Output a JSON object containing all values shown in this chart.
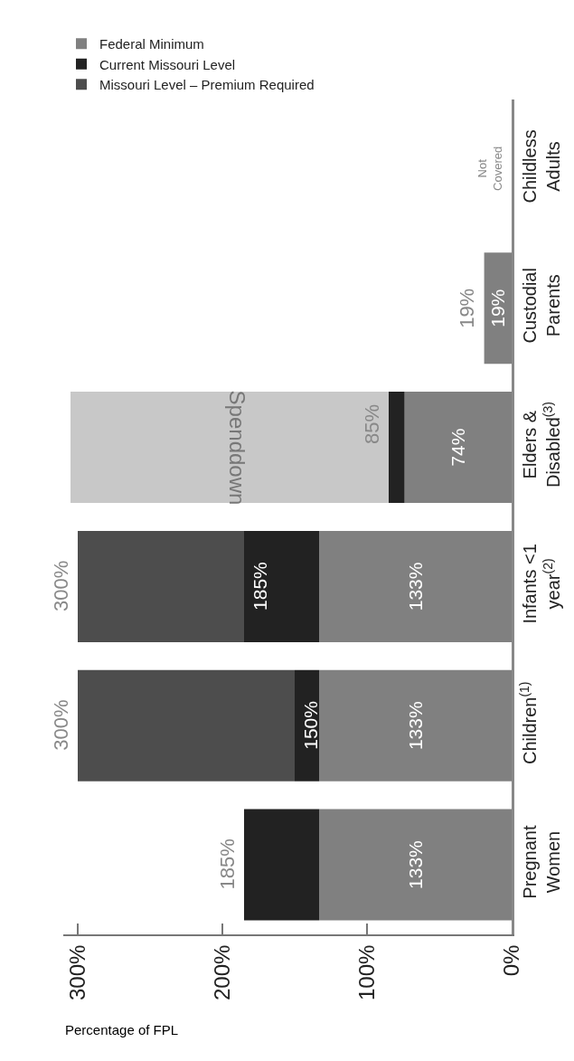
{
  "chart_data": {
    "type": "bar",
    "orientation": "horizontal",
    "stacked": true,
    "xlabel": "Percentage of FPL",
    "categories": [
      "Childless Adults",
      "Custodial Parents",
      "Elders & Disabled$^{(3)}$",
      "Infants <1 year$^{(2)}$",
      "Children$^{(1)}$",
      "Pregnant Women"
    ],
    "series": [
      {
        "name": "Federal Minimum",
        "color": "#808080",
        "values": [
          null,
          19,
          74,
          133,
          133,
          133
        ],
        "value_labels": [
          null,
          "19%",
          "74%",
          "133%",
          "133%",
          "133%"
        ]
      },
      {
        "name": "Current Missouri Level",
        "color": "#222222",
        "values": [
          null,
          null,
          11,
          52,
          17,
          52
        ]
      },
      {
        "name": "Missouri Level – Premium Required",
        "color": "#4d4d4d",
        "values": [
          null,
          null,
          null,
          115,
          150,
          null
        ]
      },
      {
        "color": "#c8c8c8",
        "values": [
          null,
          null,
          220,
          null,
          null,
          null
        ]
      }
    ],
    "annotations": [
      "Not Covered",
      {
        "text": "Spenddown",
        "x": 190,
        "y": "Elders & Disabled$^{(3)}$"
      },
      {
        "text": "19%",
        "x": 19,
        "y": "Custodial Parents"
      },
      {
        "text": "85%",
        "x": 85,
        "y": "Elders & Disabled$^{(3)}$"
      },
      {
        "text": "185%",
        "x": 185,
        "y": "Infants <1 year$^{(2)}$"
      },
      {
        "text": "300%",
        "x": 300,
        "y": "Infants <1 year$^{(2)}$"
      },
      {
        "text": "150%",
        "x": 150,
        "y": "Children$^{(1)}$"
      },
      {
        "text": "300%",
        "x": 300,
        "y": "Children$^{(1)}$"
      },
      {
        "text": "185%",
        "x": 185,
        "y": "Pregnant Women"
      }
    ],
    "xlim": [
      310,
      0
    ],
    "xticks": [
      {
        "value": 0,
        "label": "0%"
      },
      {
        "value": 100,
        "label": "100%"
      },
      {
        "value": 200,
        "label": "200%"
      },
      {
        "value": 300,
        "label": "300%"
      }
    ],
    "legend": "top left"
  }
}
